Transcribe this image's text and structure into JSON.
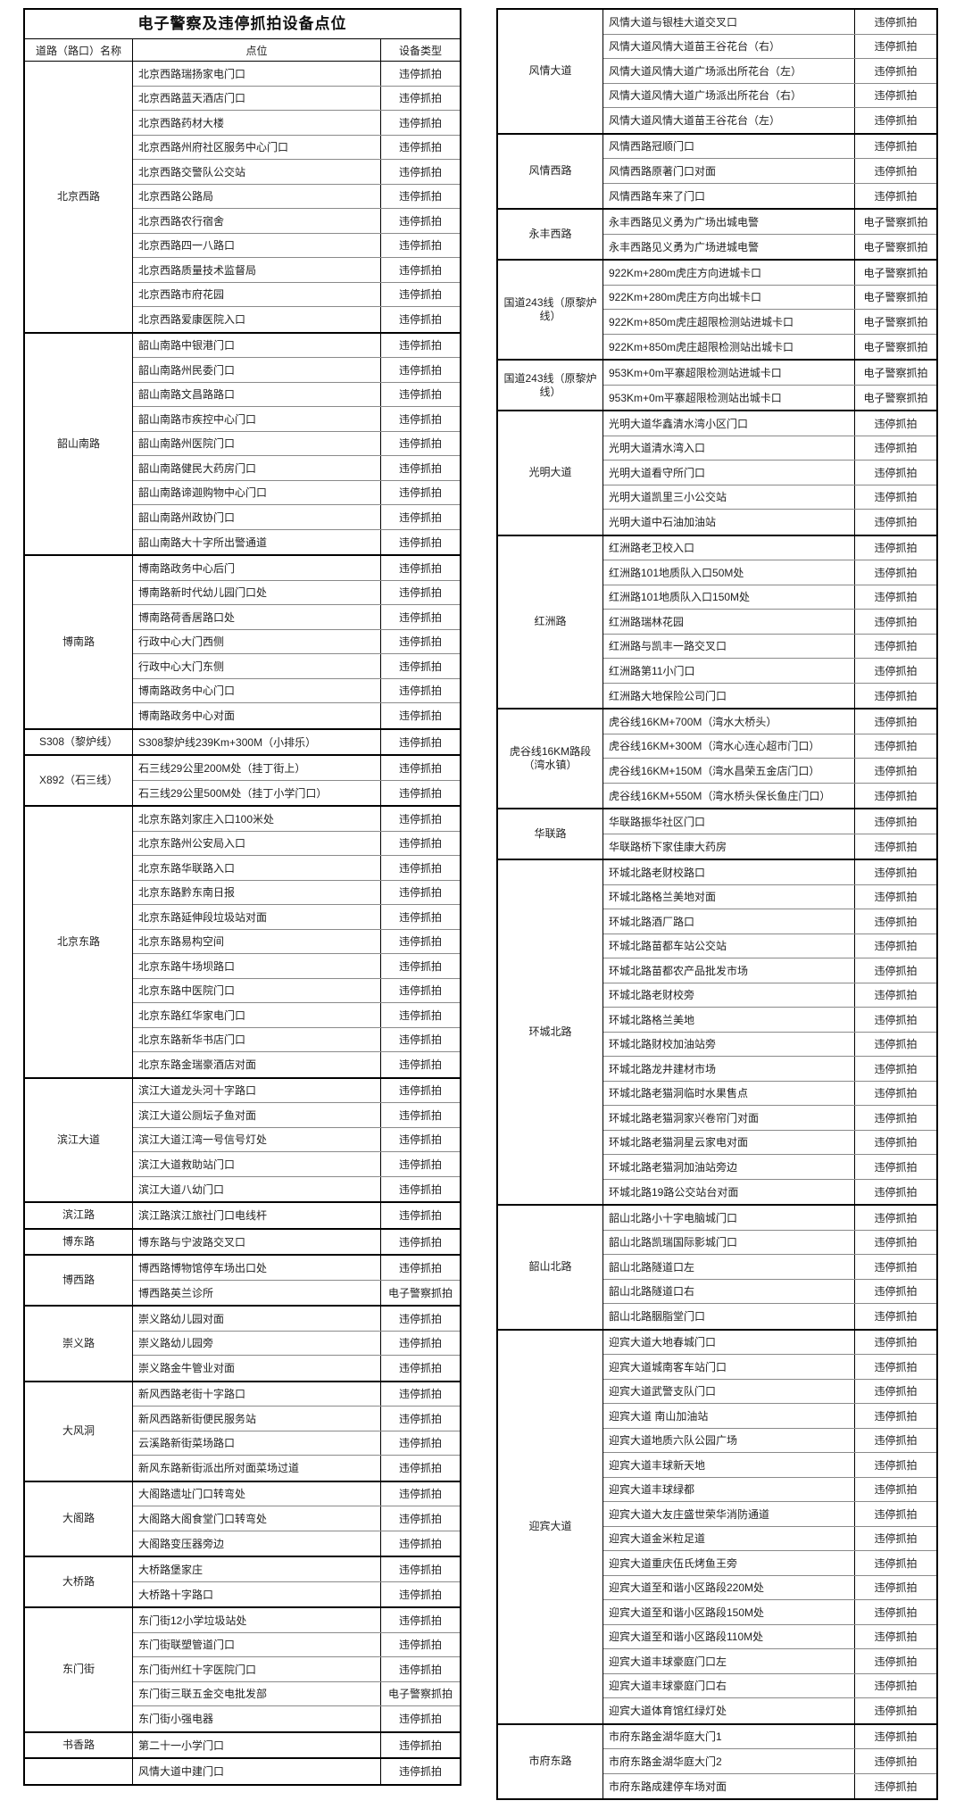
{
  "title": "电子警察及违停抓拍设备点位",
  "header": {
    "road": "道路（路口）名称",
    "location": "点位",
    "device": "设备类型"
  },
  "device_types": {
    "illegal_parking": "违停抓拍",
    "e_police": "电子警察抓拍"
  },
  "colors": {
    "border": "#000000",
    "row_line": "#8a8a8a",
    "text": "#1f1f1f",
    "background": "#ffffff"
  },
  "left_table": {
    "groups": [
      {
        "road": "北京西路",
        "rows": [
          [
            "北京西路瑞扬家电门口",
            "违停抓拍"
          ],
          [
            "北京西路蓝天酒店门口",
            "违停抓拍"
          ],
          [
            "北京西路药材大楼",
            "违停抓拍"
          ],
          [
            "北京西路州府社区服务中心门口",
            "违停抓拍"
          ],
          [
            "北京西路交警队公交站",
            "违停抓拍"
          ],
          [
            "北京西路公路局",
            "违停抓拍"
          ],
          [
            "北京西路农行宿舍",
            "违停抓拍"
          ],
          [
            "北京西路四一八路口",
            "违停抓拍"
          ],
          [
            "北京西路质量技术监督局",
            "违停抓拍"
          ],
          [
            "北京西路市府花园",
            "违停抓拍"
          ],
          [
            "北京西路爱康医院入口",
            "违停抓拍"
          ]
        ]
      },
      {
        "road": "韶山南路",
        "rows": [
          [
            "韶山南路中银港门口",
            "违停抓拍"
          ],
          [
            "韶山南路州民委门口",
            "违停抓拍"
          ],
          [
            "韶山南路文昌路路口",
            "违停抓拍"
          ],
          [
            "韶山南路市疾控中心门口",
            "违停抓拍"
          ],
          [
            "韶山南路州医院门口",
            "违停抓拍"
          ],
          [
            "韶山南路健民大药房门口",
            "违停抓拍"
          ],
          [
            "韶山南路谛迦购物中心门口",
            "违停抓拍"
          ],
          [
            "韶山南路州政协门口",
            "违停抓拍"
          ],
          [
            "韶山南路大十字所出警通道",
            "违停抓拍"
          ]
        ]
      },
      {
        "road": "博南路",
        "rows": [
          [
            "博南路政务中心后门",
            "违停抓拍"
          ],
          [
            "博南路新时代幼儿园门口处",
            "违停抓拍"
          ],
          [
            "博南路荷香居路口处",
            "违停抓拍"
          ],
          [
            "行政中心大门西侧",
            "违停抓拍"
          ],
          [
            "行政中心大门东侧",
            "违停抓拍"
          ],
          [
            "博南路政务中心门口",
            "违停抓拍"
          ],
          [
            "博南路政务中心对面",
            "违停抓拍"
          ]
        ]
      },
      {
        "road": "S308（黎炉线）",
        "rows": [
          [
            "S308黎炉线239Km+300M（小排乐）",
            "违停抓拍"
          ]
        ]
      },
      {
        "road": "X892（石三线）",
        "rows": [
          [
            "石三线29公里200M处（挂丁街上）",
            "违停抓拍"
          ],
          [
            "石三线29公里500M处（挂丁小学门口）",
            "违停抓拍"
          ]
        ]
      },
      {
        "road": "北京东路",
        "rows": [
          [
            "北京东路刘家庄入口100米处",
            "违停抓拍"
          ],
          [
            "北京东路州公安局入口",
            "违停抓拍"
          ],
          [
            "北京东路华联路入口",
            "违停抓拍"
          ],
          [
            "北京东路黔东南日报",
            "违停抓拍"
          ],
          [
            "北京东路延伸段垃圾站对面",
            "违停抓拍"
          ],
          [
            "北京东路易构空间",
            "违停抓拍"
          ],
          [
            "北京东路牛场坝路口",
            "违停抓拍"
          ],
          [
            "北京东路中医院门口",
            "违停抓拍"
          ],
          [
            "北京东路红华家电门口",
            "违停抓拍"
          ],
          [
            "北京东路新华书店门口",
            "违停抓拍"
          ],
          [
            "北京东路金瑞豪酒店对面",
            "违停抓拍"
          ]
        ]
      },
      {
        "road": "滨江大道",
        "rows": [
          [
            "滨江大道龙头河十字路口",
            "违停抓拍"
          ],
          [
            "滨江大道公厕坛子鱼对面",
            "违停抓拍"
          ],
          [
            "滨江大道江湾一号信号灯处",
            "违停抓拍"
          ],
          [
            "滨江大道救助站门口",
            "违停抓拍"
          ],
          [
            "滨江大道八幼门口",
            "违停抓拍"
          ]
        ]
      },
      {
        "road": "滨江路",
        "rows": [
          [
            "滨江路滨江旅社门口电线杆",
            "违停抓拍"
          ]
        ]
      },
      {
        "road": "博东路",
        "rows": [
          [
            "博东路与宁波路交叉口",
            "违停抓拍"
          ]
        ]
      },
      {
        "road": "博西路",
        "rows": [
          [
            "博西路博物馆停车场出口处",
            "违停抓拍"
          ],
          [
            "博西路英兰诊所",
            "电子警察抓拍"
          ]
        ]
      },
      {
        "road": "崇义路",
        "rows": [
          [
            "崇义路幼儿园对面",
            "违停抓拍"
          ],
          [
            "崇义路幼儿园旁",
            "违停抓拍"
          ],
          [
            "崇义路金牛管业对面",
            "违停抓拍"
          ]
        ]
      },
      {
        "road": "大风洞",
        "rows": [
          [
            "新风西路老街十字路口",
            "违停抓拍"
          ],
          [
            "新风西路新街便民服务站",
            "违停抓拍"
          ],
          [
            "云溪路新街菜场路口",
            "违停抓拍"
          ],
          [
            "新风东路新街派出所对面菜场过道",
            "违停抓拍"
          ]
        ]
      },
      {
        "road": "大阁路",
        "rows": [
          [
            "大阁路遗址门口转弯处",
            "违停抓拍"
          ],
          [
            "大阁路大阁食堂门口转弯处",
            "违停抓拍"
          ],
          [
            "大阁路变压器旁边",
            "违停抓拍"
          ]
        ]
      },
      {
        "road": "大桥路",
        "rows": [
          [
            "大桥路堡家庄",
            "违停抓拍"
          ],
          [
            "大桥路十字路口",
            "违停抓拍"
          ]
        ]
      },
      {
        "road": "东门街",
        "rows": [
          [
            "东门街12小学垃圾站处",
            "违停抓拍"
          ],
          [
            "东门街联塑管道门口",
            "违停抓拍"
          ],
          [
            "东门街州红十字医院门口",
            "违停抓拍"
          ],
          [
            "东门街三联五金交电批发部",
            "电子警察抓拍"
          ],
          [
            "东门街小强电器",
            "违停抓拍"
          ]
        ]
      },
      {
        "road": "书香路",
        "rows": [
          [
            "第二十一小学门口",
            "违停抓拍"
          ]
        ]
      },
      {
        "road": "",
        "rows": [
          [
            "风情大道中建门口",
            "违停抓拍"
          ]
        ]
      }
    ]
  },
  "right_table": {
    "groups": [
      {
        "road": "风情大道",
        "rows": [
          [
            "风情大道与银桂大道交叉口",
            "违停抓拍"
          ],
          [
            "风情大道风情大道苗王谷花台（右）",
            "违停抓拍"
          ],
          [
            "风情大道风情大道广场派出所花台（左）",
            "违停抓拍"
          ],
          [
            "风情大道风情大道广场派出所花台（右）",
            "违停抓拍"
          ],
          [
            "风情大道风情大道苗王谷花台（左）",
            "违停抓拍"
          ]
        ]
      },
      {
        "road": "风情西路",
        "rows": [
          [
            "风情西路冠顺门口",
            "违停抓拍"
          ],
          [
            "风情西路原著门口对面",
            "违停抓拍"
          ],
          [
            "风情西路车来了门口",
            "违停抓拍"
          ]
        ]
      },
      {
        "road": "永丰西路",
        "rows": [
          [
            "永丰西路见义勇为广场出城电警",
            "电子警察抓拍"
          ],
          [
            "永丰西路见义勇为广场进城电警",
            "电子警察抓拍"
          ]
        ]
      },
      {
        "road": "国道243线（原黎炉线）",
        "rows": [
          [
            "922Km+280m虎庄方向进城卡口",
            "电子警察抓拍"
          ],
          [
            "922Km+280m虎庄方向出城卡口",
            "电子警察抓拍"
          ],
          [
            "922Km+850m虎庄超限检测站进城卡口",
            "电子警察抓拍"
          ],
          [
            "922Km+850m虎庄超限检测站出城卡口",
            "电子警察抓拍"
          ]
        ]
      },
      {
        "road": "国道243线（原黎炉线）",
        "rows": [
          [
            "953Km+0m平寨超限检测站进城卡口",
            "电子警察抓拍"
          ],
          [
            "953Km+0m平寨超限检测站出城卡口",
            "电子警察抓拍"
          ]
        ]
      },
      {
        "road": "光明大道",
        "rows": [
          [
            "光明大道华鑫清水湾小区门口",
            "违停抓拍"
          ],
          [
            "光明大道清水湾入口",
            "违停抓拍"
          ],
          [
            "光明大道看守所门口",
            "违停抓拍"
          ],
          [
            "光明大道凯里三小公交站",
            "违停抓拍"
          ],
          [
            "光明大道中石油加油站",
            "违停抓拍"
          ]
        ]
      },
      {
        "road": "红洲路",
        "rows": [
          [
            "红洲路老卫校入口",
            "违停抓拍"
          ],
          [
            "红洲路101地质队入口50M处",
            "违停抓拍"
          ],
          [
            "红洲路101地质队入口150M处",
            "违停抓拍"
          ],
          [
            "红洲路瑞林花园",
            "违停抓拍"
          ],
          [
            "红洲路与凯丰一路交叉口",
            "违停抓拍"
          ],
          [
            "红洲路第11小门口",
            "违停抓拍"
          ],
          [
            "红洲路大地保险公司门口",
            "违停抓拍"
          ]
        ]
      },
      {
        "road": "虎谷线16KM路段（湾水镇）",
        "rows": [
          [
            "虎谷线16KM+700M（湾水大桥头）",
            "违停抓拍"
          ],
          [
            "虎谷线16KM+300M（湾水心连心超市门口）",
            "违停抓拍"
          ],
          [
            "虎谷线16KM+150M（湾水昌荣五金店门口）",
            "违停抓拍"
          ],
          [
            "虎谷线16KM+550M（湾水桥头保长鱼庄门口）",
            "违停抓拍"
          ]
        ]
      },
      {
        "road": "华联路",
        "rows": [
          [
            "华联路振华社区门口",
            "违停抓拍"
          ],
          [
            "华联路桥下家佳康大药房",
            "违停抓拍"
          ]
        ]
      },
      {
        "road": "环城北路",
        "rows": [
          [
            "环城北路老财校路口",
            "违停抓拍"
          ],
          [
            "环城北路格兰美地对面",
            "违停抓拍"
          ],
          [
            "环城北路酒厂路口",
            "违停抓拍"
          ],
          [
            "环城北路苗都车站公交站",
            "违停抓拍"
          ],
          [
            "环城北路苗都农产品批发市场",
            "违停抓拍"
          ],
          [
            "环城北路老财校旁",
            "违停抓拍"
          ],
          [
            "环城北路格兰美地",
            "违停抓拍"
          ],
          [
            "环城北路财校加油站旁",
            "违停抓拍"
          ],
          [
            "环城北路龙井建材市场",
            "违停抓拍"
          ],
          [
            "环城北路老猫洞临时水果售点",
            "违停抓拍"
          ],
          [
            "环城北路老猫洞家兴卷帘门对面",
            "违停抓拍"
          ],
          [
            "环城北路老猫洞星云家电对面",
            "违停抓拍"
          ],
          [
            "环城北路老猫洞加油站旁边",
            "违停抓拍"
          ],
          [
            "环城北路19路公交站台对面",
            "违停抓拍"
          ]
        ]
      },
      {
        "road": "韶山北路",
        "rows": [
          [
            "韶山北路小十字电脑城门口",
            "违停抓拍"
          ],
          [
            "韶山北路凯瑞国际影城门口",
            "违停抓拍"
          ],
          [
            "韶山北路隧道口左",
            "违停抓拍"
          ],
          [
            "韶山北路隧道口右",
            "违停抓拍"
          ],
          [
            "韶山北路胭脂堂门口",
            "违停抓拍"
          ]
        ]
      },
      {
        "road": "迎宾大道",
        "rows": [
          [
            "迎宾大道大地春城门口",
            "违停抓拍"
          ],
          [
            "迎宾大道城南客车站门口",
            "违停抓拍"
          ],
          [
            "迎宾大道武警支队门口",
            "违停抓拍"
          ],
          [
            "迎宾大道 南山加油站",
            "违停抓拍"
          ],
          [
            "迎宾大道地质六队公园广场",
            "违停抓拍"
          ],
          [
            "迎宾大道丰球新天地",
            "违停抓拍"
          ],
          [
            "迎宾大道丰球绿都",
            "违停抓拍"
          ],
          [
            "迎宾大道大友庄盛世荣华消防通道",
            "违停抓拍"
          ],
          [
            "迎宾大道金米粒足道",
            "违停抓拍"
          ],
          [
            "迎宾大道重庆伍氏烤鱼王旁",
            "违停抓拍"
          ],
          [
            "迎宾大道至和谐小区路段220M处",
            "违停抓拍"
          ],
          [
            "迎宾大道至和谐小区路段150M处",
            "违停抓拍"
          ],
          [
            "迎宾大道至和谐小区路段110M处",
            "违停抓拍"
          ],
          [
            "迎宾大道丰球豪庭门口左",
            "违停抓拍"
          ],
          [
            "迎宾大道丰球豪庭门口右",
            "违停抓拍"
          ],
          [
            "迎宾大道体育馆红绿灯处",
            "违停抓拍"
          ]
        ]
      },
      {
        "road": "市府东路",
        "rows": [
          [
            "市府东路金湖华庭大门1",
            "违停抓拍"
          ],
          [
            "市府东路金湖华庭大门2",
            "违停抓拍"
          ],
          [
            "市府东路成建停车场对面",
            "违停抓拍"
          ]
        ]
      }
    ]
  }
}
